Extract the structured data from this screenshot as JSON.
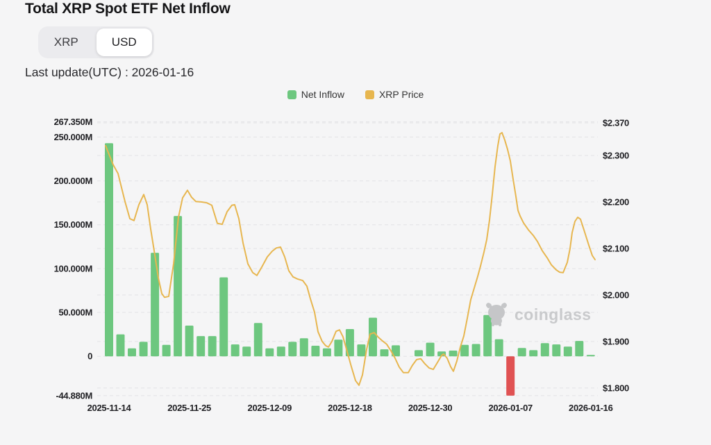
{
  "header": {
    "title": "Total XRP Spot ETF Net Inflow",
    "toggle": {
      "options": [
        "XRP",
        "USD"
      ],
      "selected": "USD"
    },
    "last_update": "Last update(UTC) : 2026-01-16"
  },
  "legend": [
    {
      "label": "Net Inflow",
      "color": "#6dc77f"
    },
    {
      "label": "XRP Price",
      "color": "#e7b64f"
    }
  ],
  "watermark": {
    "text": "coinglass"
  },
  "colors": {
    "net_inflow": "#6dc77f",
    "net_outflow": "#e05253",
    "xrp_price": "#e7b64f",
    "grid": "#e3e3e6",
    "axis_text": "#202024",
    "background": "#f5f5f6"
  },
  "chart_data": {
    "type": "bar+line",
    "title": "Total XRP Spot ETF Net Inflow",
    "legend_position": "top-center",
    "grid": "dashed-horizontal",
    "left_axis": {
      "unit": "USD millions",
      "range": [
        -44.88,
        267.35
      ],
      "ticks": [
        {
          "label": "267.350M",
          "value": 267.35
        },
        {
          "label": "250.000M",
          "value": 250
        },
        {
          "label": "200.000M",
          "value": 200
        },
        {
          "label": "150.000M",
          "value": 150
        },
        {
          "label": "100.000M",
          "value": 100
        },
        {
          "label": "50.000M",
          "value": 50
        },
        {
          "label": "0",
          "value": 0
        },
        {
          "label": "-44.880M",
          "value": -44.88
        }
      ]
    },
    "right_axis": {
      "unit": "USD per XRP",
      "range": [
        1.8,
        2.37
      ],
      "ticks": [
        {
          "label": "$2.370",
          "value": 2.37
        },
        {
          "label": "$2.300",
          "value": 2.3
        },
        {
          "label": "$2.200",
          "value": 2.2
        },
        {
          "label": "$2.100",
          "value": 2.1
        },
        {
          "label": "$2.000",
          "value": 2.0
        },
        {
          "label": "$1.900",
          "value": 1.9
        },
        {
          "label": "$1.800",
          "value": 1.8
        }
      ]
    },
    "x_axis": {
      "ticks": [
        {
          "label": "2025-11-14",
          "index": 0
        },
        {
          "label": "2025-11-25",
          "index": 7
        },
        {
          "label": "2025-12-09",
          "index": 14
        },
        {
          "label": "2025-12-18",
          "index": 21
        },
        {
          "label": "2025-12-30",
          "index": 28
        },
        {
          "label": "2026-01-07",
          "index": 35
        },
        {
          "label": "2026-01-16",
          "index": 42
        }
      ]
    },
    "bars": {
      "name": "Net Inflow (USD millions)",
      "values": [
        243,
        25,
        9,
        16.5,
        118,
        13,
        160,
        35,
        23,
        23,
        90,
        13.5,
        11,
        38,
        9,
        11,
        16.5,
        20.5,
        12,
        9,
        19,
        31,
        13.5,
        44,
        8,
        12.5,
        0,
        7,
        15.5,
        5.5,
        6.5,
        13,
        14,
        47,
        19.5,
        -44.88,
        9.5,
        7,
        15,
        13.5,
        11,
        17.5,
        1.5
      ]
    },
    "price_line": {
      "name": "XRP Price (USD)",
      "points_format": "[x_px, price_usd]",
      "points": [
        [
          152,
          2.321
        ],
        [
          163,
          2.28
        ],
        [
          170,
          2.261
        ],
        [
          180,
          2.201
        ],
        [
          187,
          2.164
        ],
        [
          193,
          2.16
        ],
        [
          200,
          2.194
        ],
        [
          207,
          2.216
        ],
        [
          212,
          2.194
        ],
        [
          217,
          2.142
        ],
        [
          223,
          2.086
        ],
        [
          228,
          2.037
        ],
        [
          233,
          2.003
        ],
        [
          237,
          1.995
        ],
        [
          243,
          1.997
        ],
        [
          250,
          2.067
        ],
        [
          257,
          2.167
        ],
        [
          263,
          2.209
        ],
        [
          270,
          2.225
        ],
        [
          276,
          2.21
        ],
        [
          282,
          2.201
        ],
        [
          290,
          2.2
        ],
        [
          298,
          2.198
        ],
        [
          305,
          2.193
        ],
        [
          313,
          2.154
        ],
        [
          320,
          2.152
        ],
        [
          327,
          2.179
        ],
        [
          334,
          2.193
        ],
        [
          338,
          2.194
        ],
        [
          344,
          2.164
        ],
        [
          350,
          2.112
        ],
        [
          357,
          2.067
        ],
        [
          364,
          2.048
        ],
        [
          370,
          2.042
        ],
        [
          377,
          2.06
        ],
        [
          385,
          2.082
        ],
        [
          392,
          2.094
        ],
        [
          398,
          2.101
        ],
        [
          404,
          2.103
        ],
        [
          410,
          2.082
        ],
        [
          416,
          2.052
        ],
        [
          422,
          2.039
        ],
        [
          429,
          2.034
        ],
        [
          436,
          2.031
        ],
        [
          442,
          2.019
        ],
        [
          447,
          1.992
        ],
        [
          453,
          1.963
        ],
        [
          458,
          1.921
        ],
        [
          464,
          1.9
        ],
        [
          469,
          1.891
        ],
        [
          473,
          1.888
        ],
        [
          478,
          1.9
        ],
        [
          484,
          1.922
        ],
        [
          489,
          1.925
        ],
        [
          494,
          1.91
        ],
        [
          500,
          1.878
        ],
        [
          506,
          1.846
        ],
        [
          512,
          1.816
        ],
        [
          517,
          1.806
        ],
        [
          522,
          1.828
        ],
        [
          528,
          1.883
        ],
        [
          533,
          1.916
        ],
        [
          539,
          1.919
        ],
        [
          545,
          1.909
        ],
        [
          551,
          1.901
        ],
        [
          557,
          1.894
        ],
        [
          563,
          1.88
        ],
        [
          569,
          1.864
        ],
        [
          575,
          1.845
        ],
        [
          581,
          1.833
        ],
        [
          588,
          1.833
        ],
        [
          594,
          1.849
        ],
        [
          600,
          1.861
        ],
        [
          606,
          1.863
        ],
        [
          612,
          1.852
        ],
        [
          618,
          1.843
        ],
        [
          624,
          1.84
        ],
        [
          630,
          1.855
        ],
        [
          636,
          1.87
        ],
        [
          639,
          1.873
        ],
        [
          644,
          1.864
        ],
        [
          649,
          1.846
        ],
        [
          653,
          1.836
        ],
        [
          658,
          1.858
        ],
        [
          663,
          1.888
        ],
        [
          668,
          1.912
        ],
        [
          673,
          1.95
        ],
        [
          678,
          1.99
        ],
        [
          683,
          2.015
        ],
        [
          688,
          2.04
        ],
        [
          692,
          2.062
        ],
        [
          697,
          2.092
        ],
        [
          701,
          2.119
        ],
        [
          705,
          2.161
        ],
        [
          709,
          2.216
        ],
        [
          713,
          2.276
        ],
        [
          717,
          2.321
        ],
        [
          720,
          2.346
        ],
        [
          723,
          2.349
        ],
        [
          727,
          2.333
        ],
        [
          731,
          2.313
        ],
        [
          735,
          2.288
        ],
        [
          739,
          2.249
        ],
        [
          743,
          2.212
        ],
        [
          746,
          2.182
        ],
        [
          749,
          2.17
        ],
        [
          754,
          2.155
        ],
        [
          761,
          2.14
        ],
        [
          768,
          2.128
        ],
        [
          774,
          2.115
        ],
        [
          781,
          2.095
        ],
        [
          788,
          2.08
        ],
        [
          794,
          2.065
        ],
        [
          801,
          2.054
        ],
        [
          806,
          2.049
        ],
        [
          811,
          2.048
        ],
        [
          817,
          2.07
        ],
        [
          821,
          2.1
        ],
        [
          824,
          2.134
        ],
        [
          828,
          2.158
        ],
        [
          832,
          2.167
        ],
        [
          836,
          2.163
        ],
        [
          841,
          2.14
        ],
        [
          848,
          2.107
        ],
        [
          853,
          2.085
        ],
        [
          857,
          2.076
        ]
      ]
    }
  }
}
